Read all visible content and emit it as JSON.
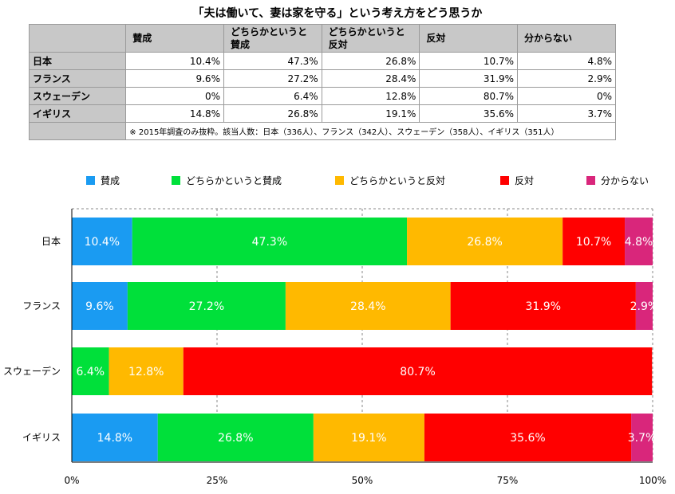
{
  "title": "「夫は働いて、妻は家を守る」という考え方をどう思うか",
  "table": {
    "headers": [
      "賛成",
      "どちらかというと\n賛成",
      "どちらかというと\n反対",
      "反対",
      "分からない"
    ],
    "rows": [
      {
        "country": "日本",
        "cells": [
          "10.4%",
          "47.3%",
          "26.8%",
          "10.7%",
          "4.8%"
        ]
      },
      {
        "country": "フランス",
        "cells": [
          "9.6%",
          "27.2%",
          "28.4%",
          "31.9%",
          "2.9%"
        ]
      },
      {
        "country": "スウェーデン",
        "cells": [
          "0%",
          "6.4%",
          "12.8%",
          "80.7%",
          "0%"
        ]
      },
      {
        "country": "イギリス",
        "cells": [
          "14.8%",
          "26.8%",
          "19.1%",
          "35.6%",
          "3.7%"
        ]
      }
    ],
    "note": "※ 2015年調査のみ抜粋。該当人数：日本（336人）、フランス（342人）、スウェーデン（358人）、イギリス（351人）"
  },
  "chart_data": {
    "type": "bar",
    "orientation": "horizontal",
    "stacked": true,
    "categories": [
      "日本",
      "フランス",
      "スウェーデン",
      "イギリス"
    ],
    "series": [
      {
        "name": "賛成",
        "color": "#1a9bf2",
        "values": [
          10.4,
          9.6,
          0,
          14.8
        ]
      },
      {
        "name": "どちらかというと賛成",
        "color": "#00e03a",
        "values": [
          47.3,
          27.2,
          6.4,
          26.8
        ]
      },
      {
        "name": "どちらかというと反対",
        "color": "#ffb900",
        "values": [
          26.8,
          28.4,
          12.8,
          19.1
        ]
      },
      {
        "name": "反対",
        "color": "#ff0000",
        "values": [
          10.7,
          31.9,
          80.7,
          35.6
        ]
      },
      {
        "name": "分からない",
        "color": "#d9267b",
        "values": [
          4.8,
          2.9,
          0,
          3.7
        ]
      }
    ],
    "data_labels": [
      [
        "10.4%",
        "47.3%",
        "26.8%",
        "10.7%",
        "4.8%"
      ],
      [
        "9.6%",
        "27.2%",
        "28.4%",
        "31.9%",
        "2.9%"
      ],
      [
        "",
        "6.4%",
        "12.8%",
        "80.7%",
        ""
      ],
      [
        "14.8%",
        "26.8%",
        "19.1%",
        "35.6%",
        "3.7%"
      ]
    ],
    "x_ticks": [
      "0%",
      "25%",
      "50%",
      "75%",
      "100%"
    ],
    "xlim": [
      0,
      100
    ],
    "grid": true,
    "legend_position": "top"
  }
}
